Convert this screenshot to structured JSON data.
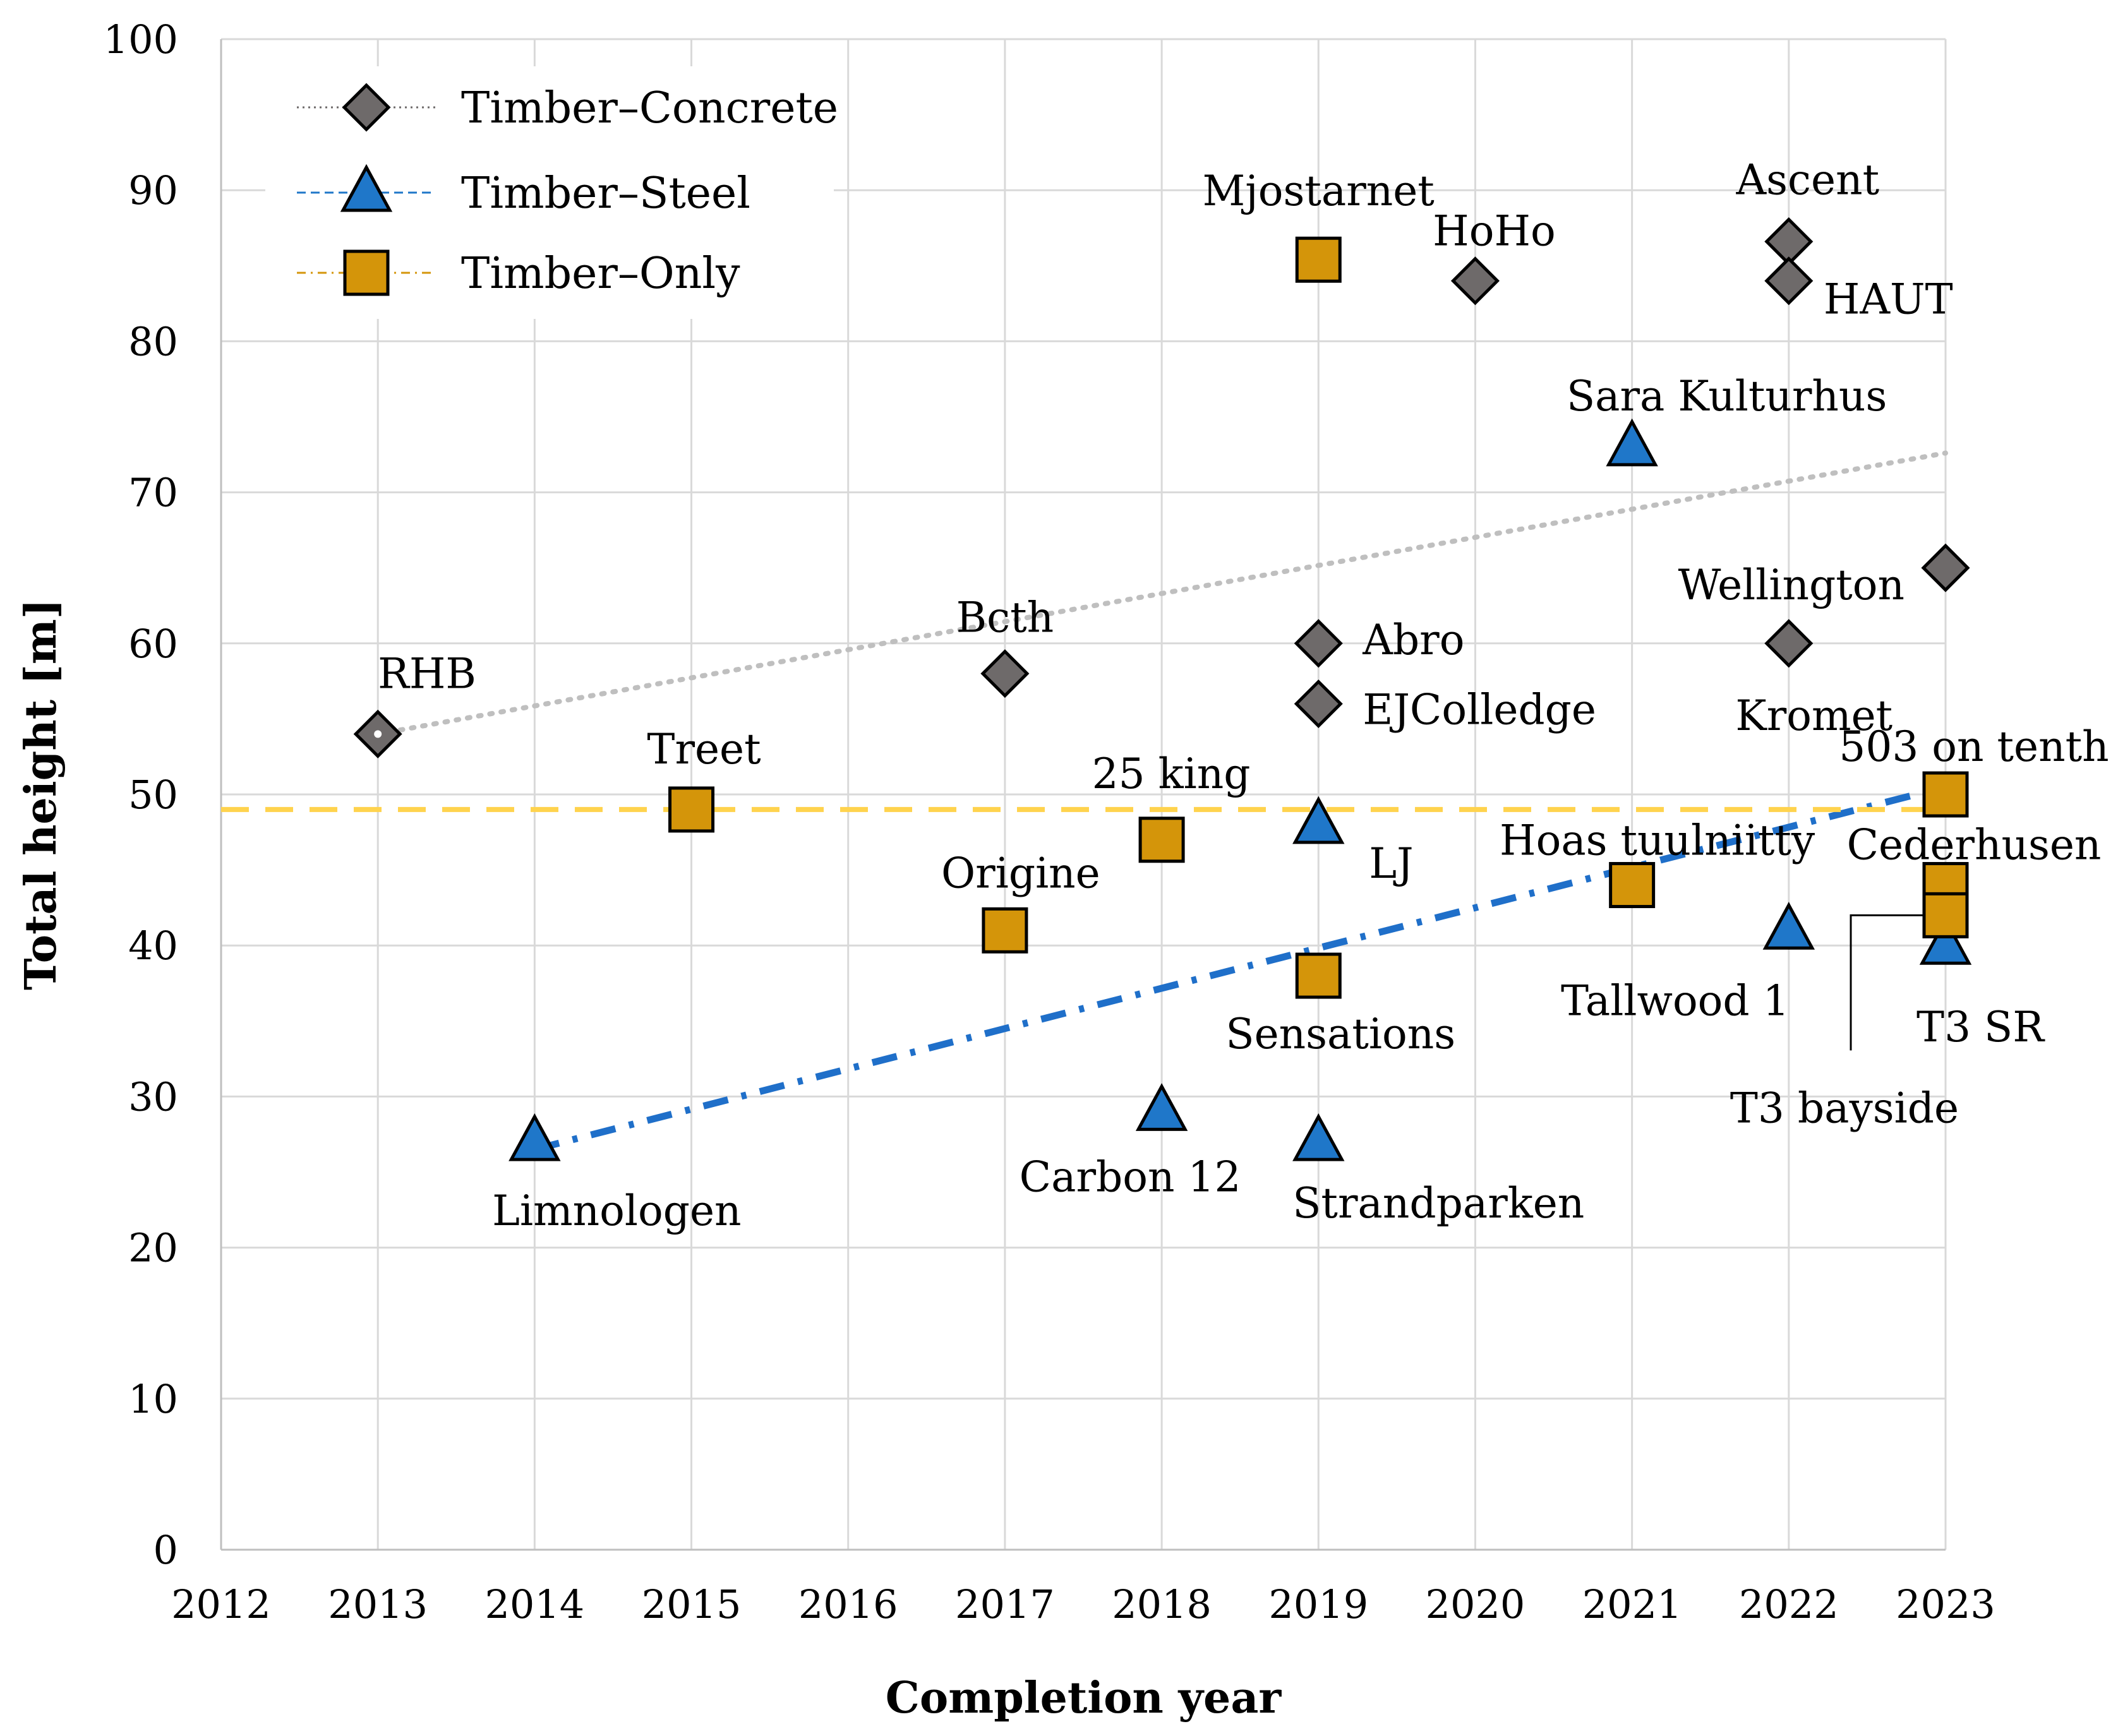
{
  "chart_data": {
    "type": "scatter",
    "title": "",
    "xlabel": "Completion year",
    "ylabel": "Total height [m]",
    "xlim": [
      2012,
      2023
    ],
    "ylim": [
      0,
      100
    ],
    "xticks": [
      "2012",
      "2013",
      "2014",
      "2015",
      "2016",
      "2017",
      "2018",
      "2019",
      "2020",
      "2021",
      "2022",
      "2023"
    ],
    "yticks": [
      "0",
      "10",
      "20",
      "30",
      "40",
      "50",
      "60",
      "70",
      "80",
      "90",
      "100"
    ],
    "grid": true,
    "legend_position": "top-left",
    "series": [
      {
        "name": "Timber–Concrete",
        "marker": "diamond",
        "color": "#6e6a6a",
        "points": [
          {
            "label": "RHB",
            "x": 2013,
            "y": 54
          },
          {
            "label": "Bcth",
            "x": 2017,
            "y": 58
          },
          {
            "label": "Abro",
            "x": 2019,
            "y": 60
          },
          {
            "label": "EJColledge",
            "x": 2019,
            "y": 56
          },
          {
            "label": "HoHo",
            "x": 2020,
            "y": 84
          },
          {
            "label": "Ascent",
            "x": 2022,
            "y": 86.6
          },
          {
            "label": "HAUT",
            "x": 2022,
            "y": 84
          },
          {
            "label": "Kromet",
            "x": 2022,
            "y": 60
          },
          {
            "label": "Wellington",
            "x": 2023,
            "y": 65
          }
        ],
        "trendline": {
          "style": "dotted",
          "color": "#bfbfbf",
          "x": [
            2013,
            2023
          ],
          "y": [
            54,
            72.6
          ]
        }
      },
      {
        "name": "Timber–Steel",
        "marker": "triangle",
        "color": "#1f77c9",
        "points": [
          {
            "label": "Limnologen",
            "x": 2014,
            "y": 27
          },
          {
            "label": "Carbon 12",
            "x": 2018,
            "y": 29
          },
          {
            "label": "LJ",
            "x": 2019,
            "y": 48
          },
          {
            "label": "Strandparken",
            "x": 2019,
            "y": 27
          },
          {
            "label": "Sara Kulturhus",
            "x": 2021,
            "y": 73
          },
          {
            "label": "Tallwood 1",
            "x": 2022,
            "y": 41
          },
          {
            "label": "T3 SR",
            "x": 2023,
            "y": 40
          }
        ],
        "trendline": {
          "style": "dash-dot",
          "color": "#1f6fc9",
          "x": [
            2014,
            2023
          ],
          "y": [
            26.5,
            50.5
          ]
        }
      },
      {
        "name": "Timber–Only",
        "marker": "square",
        "color": "#d4950a",
        "points": [
          {
            "label": "Treet",
            "x": 2015,
            "y": 49
          },
          {
            "label": "Origine",
            "x": 2017,
            "y": 41
          },
          {
            "label": "25 king",
            "x": 2018,
            "y": 47
          },
          {
            "label": "Mjostarnet",
            "x": 2019,
            "y": 85.4
          },
          {
            "label": "Sensations",
            "x": 2019,
            "y": 38
          },
          {
            "label": "Hoas tuulniitty",
            "x": 2021,
            "y": 44
          },
          {
            "label": "503 on tenth",
            "x": 2023,
            "y": 50
          },
          {
            "label": "Cederhusen",
            "x": 2023,
            "y": 44
          },
          {
            "label": "T3 bayside",
            "x": 2023,
            "y": 42
          }
        ],
        "trendline": {
          "style": "dashed",
          "color": "#ffd34d",
          "x": [
            2012,
            2023
          ],
          "y": [
            49,
            49
          ]
        }
      }
    ]
  }
}
